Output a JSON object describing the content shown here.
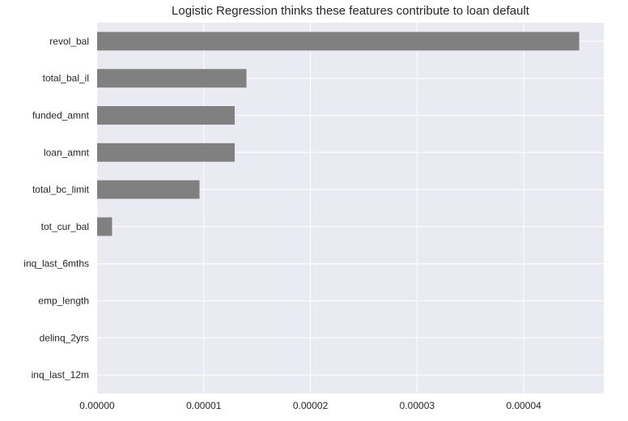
{
  "chart_data": {
    "type": "bar",
    "orientation": "horizontal",
    "title": "Logistic Regression thinks these features contribute to loan default",
    "categories": [
      "revol_bal",
      "total_bal_il",
      "funded_amnt",
      "loan_amnt",
      "total_bc_limit",
      "tot_cur_bal",
      "inq_last_6mths",
      "emp_length",
      "delinq_2yrs",
      "inq_last_12m"
    ],
    "values": [
      4.52e-05,
      1.4e-05,
      1.29e-05,
      1.29e-05,
      9.6e-06,
      1.4e-06,
      0,
      0,
      0,
      0
    ],
    "xlim": [
      0,
      4.75e-05
    ],
    "xticks": [
      0,
      1e-05,
      2e-05,
      3e-05,
      4e-05
    ],
    "xtick_labels": [
      "0.00000",
      "0.00001",
      "0.00002",
      "0.00003",
      "0.00004"
    ],
    "xlabel": "",
    "ylabel": "",
    "grid": true,
    "colors": {
      "bar": "#808080",
      "background": "#eaeaf2",
      "grid": "#ffffff",
      "text": "#262626"
    }
  }
}
